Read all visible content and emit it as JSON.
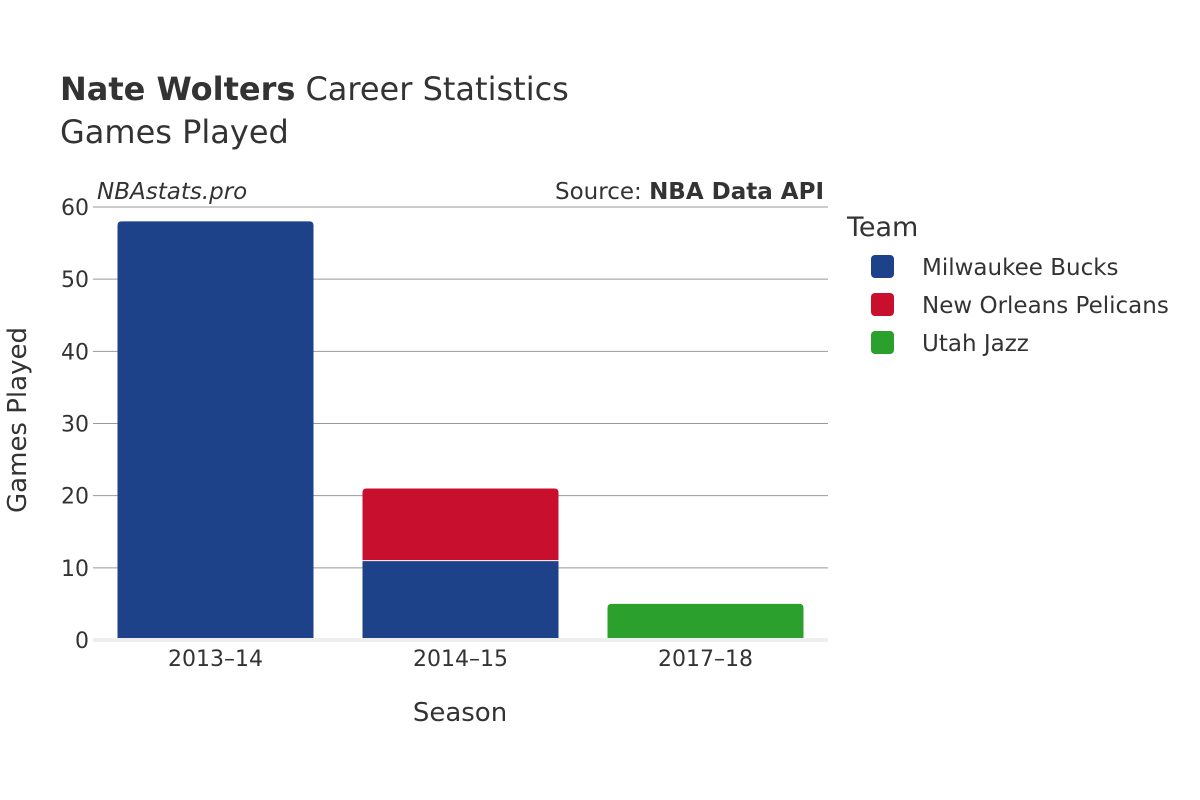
{
  "chart_data": {
    "type": "bar",
    "stacked": true,
    "title_bold": "Nate Wolters",
    "title_rest": "Career Statistics",
    "subtitle": "Games Played",
    "watermark": "NBAstats.pro",
    "source_prefix": "Source: ",
    "source_name": "NBA Data API",
    "xlabel": "Season",
    "ylabel": "Games Played",
    "ylim": [
      0,
      60
    ],
    "yticks": [
      0,
      10,
      20,
      30,
      40,
      50,
      60
    ],
    "categories": [
      "2013–14",
      "2014–15",
      "2017–18"
    ],
    "legend_title": "Team",
    "legend_position": "right",
    "grid": true,
    "series": [
      {
        "name": "Milwaukee Bucks",
        "color": "#1d428a",
        "values": [
          58,
          11,
          0
        ]
      },
      {
        "name": "New Orleans Pelicans",
        "color": "#c8102e",
        "values": [
          0,
          10,
          0
        ]
      },
      {
        "name": "Utah Jazz",
        "color": "#2ca02c",
        "values": [
          0,
          0,
          5
        ]
      }
    ]
  }
}
